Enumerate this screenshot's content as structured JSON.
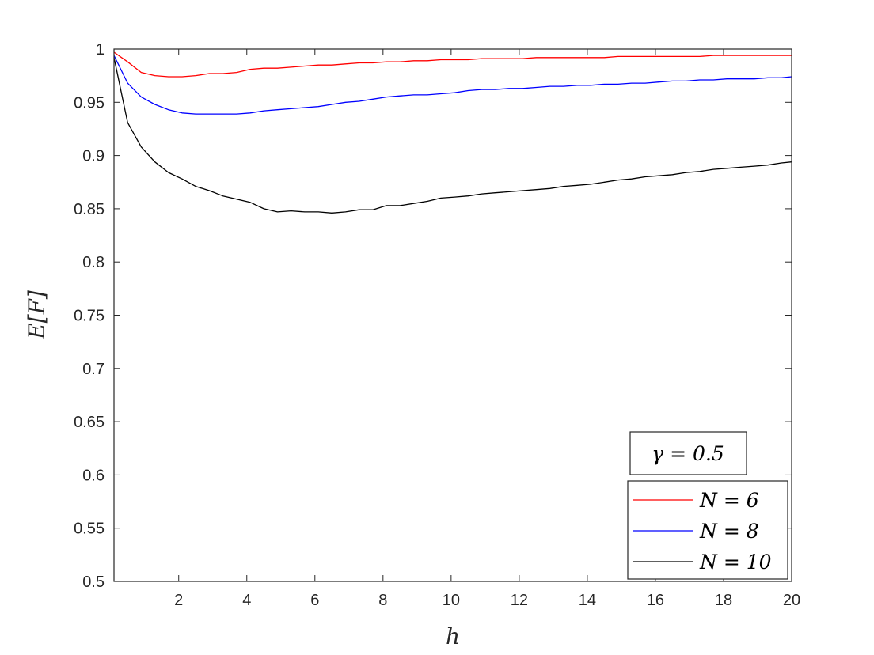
{
  "chart_data": {
    "type": "line",
    "xlabel": "h",
    "ylabel": "E[F]",
    "xlim": [
      0.1,
      20
    ],
    "ylim": [
      0.5,
      1
    ],
    "xticks": [
      2,
      4,
      6,
      8,
      10,
      12,
      14,
      16,
      18,
      20
    ],
    "yticks": [
      0.5,
      0.55,
      0.6,
      0.65,
      0.7,
      0.75,
      0.8,
      0.85,
      0.9,
      0.95,
      1
    ],
    "ytick_labels": [
      "0.5",
      "0.55",
      "0.6",
      "0.65",
      "0.7",
      "0.75",
      "0.8",
      "0.85",
      "0.9",
      "0.95",
      "1"
    ],
    "grid": false,
    "legend_position": "bottom-right",
    "annotation": "γ = 0.5",
    "x": [
      0.1,
      0.5,
      0.9,
      1.3,
      1.7,
      2.1,
      2.5,
      2.9,
      3.3,
      3.7,
      4.1,
      4.5,
      4.9,
      5.3,
      5.7,
      6.1,
      6.5,
      6.9,
      7.3,
      7.7,
      8.1,
      8.5,
      8.9,
      9.3,
      9.7,
      10.1,
      10.5,
      10.9,
      11.3,
      11.7,
      12.1,
      12.5,
      12.9,
      13.3,
      13.7,
      14.1,
      14.5,
      14.9,
      15.3,
      15.7,
      16.1,
      16.5,
      16.9,
      17.3,
      17.7,
      18.1,
      18.5,
      18.9,
      19.3,
      19.7,
      20.0
    ],
    "series": [
      {
        "name": "N = 6",
        "color": "#ff0000",
        "values": [
          0.997,
          0.988,
          0.978,
          0.975,
          0.974,
          0.974,
          0.975,
          0.977,
          0.977,
          0.978,
          0.981,
          0.982,
          0.982,
          0.983,
          0.984,
          0.985,
          0.985,
          0.986,
          0.987,
          0.987,
          0.988,
          0.988,
          0.989,
          0.989,
          0.99,
          0.99,
          0.99,
          0.991,
          0.991,
          0.991,
          0.991,
          0.992,
          0.992,
          0.992,
          0.992,
          0.992,
          0.992,
          0.993,
          0.993,
          0.993,
          0.993,
          0.993,
          0.993,
          0.993,
          0.994,
          0.994,
          0.994,
          0.994,
          0.994,
          0.994,
          0.994
        ]
      },
      {
        "name": "N = 8",
        "color": "#0000ff",
        "values": [
          0.994,
          0.968,
          0.955,
          0.948,
          0.943,
          0.94,
          0.939,
          0.939,
          0.939,
          0.939,
          0.94,
          0.942,
          0.943,
          0.944,
          0.945,
          0.946,
          0.948,
          0.95,
          0.951,
          0.953,
          0.955,
          0.956,
          0.957,
          0.957,
          0.958,
          0.959,
          0.961,
          0.962,
          0.962,
          0.963,
          0.963,
          0.964,
          0.965,
          0.965,
          0.966,
          0.966,
          0.967,
          0.967,
          0.968,
          0.968,
          0.969,
          0.97,
          0.97,
          0.971,
          0.971,
          0.972,
          0.972,
          0.972,
          0.973,
          0.973,
          0.974
        ]
      },
      {
        "name": "N = 10",
        "color": "#000000",
        "values": [
          0.992,
          0.931,
          0.908,
          0.894,
          0.884,
          0.878,
          0.871,
          0.867,
          0.862,
          0.859,
          0.856,
          0.85,
          0.847,
          0.848,
          0.847,
          0.847,
          0.846,
          0.847,
          0.849,
          0.849,
          0.853,
          0.853,
          0.855,
          0.857,
          0.86,
          0.861,
          0.862,
          0.864,
          0.865,
          0.866,
          0.867,
          0.868,
          0.869,
          0.871,
          0.872,
          0.873,
          0.875,
          0.877,
          0.878,
          0.88,
          0.881,
          0.882,
          0.884,
          0.885,
          0.887,
          0.888,
          0.889,
          0.89,
          0.891,
          0.893,
          0.894
        ]
      }
    ]
  }
}
